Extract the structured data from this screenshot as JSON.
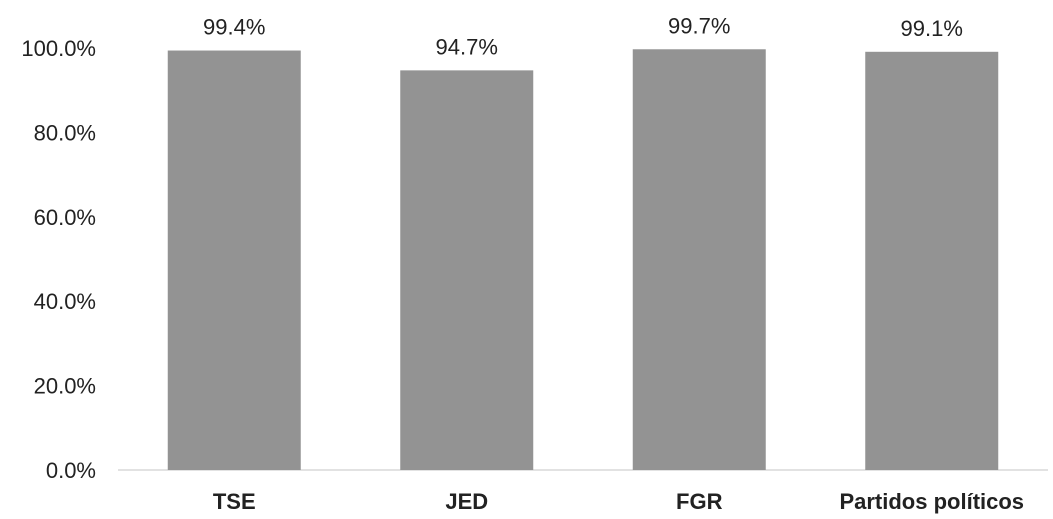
{
  "chart_data": {
    "type": "bar",
    "categories": [
      "TSE",
      "JED",
      "FGR",
      "Partidos políticos"
    ],
    "values": [
      99.4,
      94.7,
      99.7,
      99.1
    ],
    "data_labels": [
      "99.4%",
      "94.7%",
      "99.7%",
      "99.1%"
    ],
    "ylim": [
      0,
      100
    ],
    "yticks": [
      0,
      20,
      40,
      60,
      80,
      100
    ],
    "ytick_labels": [
      "0.0%",
      "20.0%",
      "40.0%",
      "60.0%",
      "80.0%",
      "100.0%"
    ],
    "grid": false,
    "legend": "none",
    "bar_color": "#939393",
    "title": "",
    "xlabel": "",
    "ylabel": ""
  }
}
